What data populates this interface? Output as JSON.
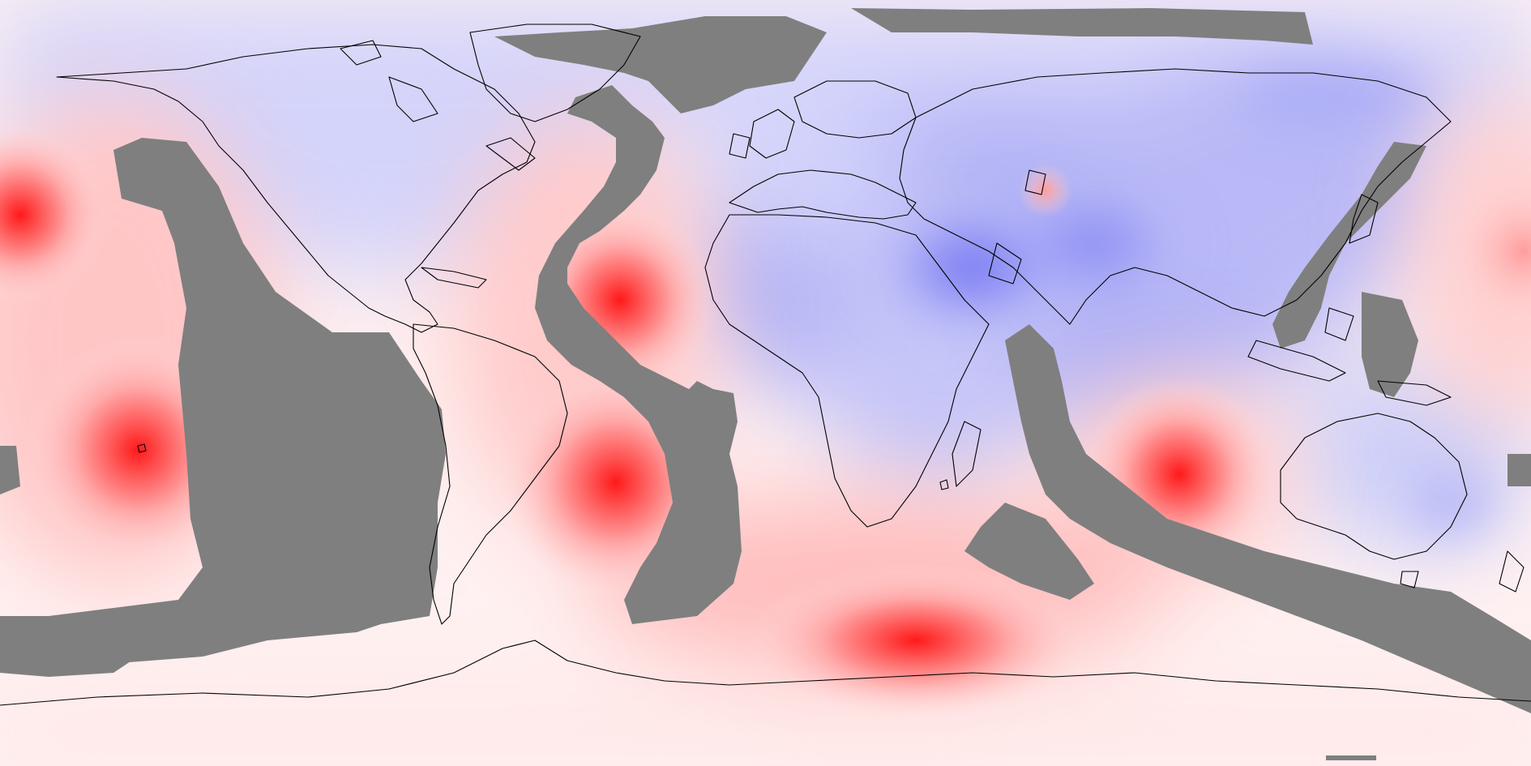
{
  "map": {
    "projection": "equirectangular",
    "colors": {
      "background": "#fff6f6",
      "mask": "#7f7f7f",
      "coastline": "#000000",
      "positive_peak": "#ff0000",
      "positive_mid": "#ff9a9a",
      "positive_light": "#ffe0e0",
      "near_zero": "#f5f5ff",
      "negative_light": "#d9d9ff",
      "negative_mid": "#a9aaf7",
      "negative_peak": "#6e6ef0"
    }
  }
}
